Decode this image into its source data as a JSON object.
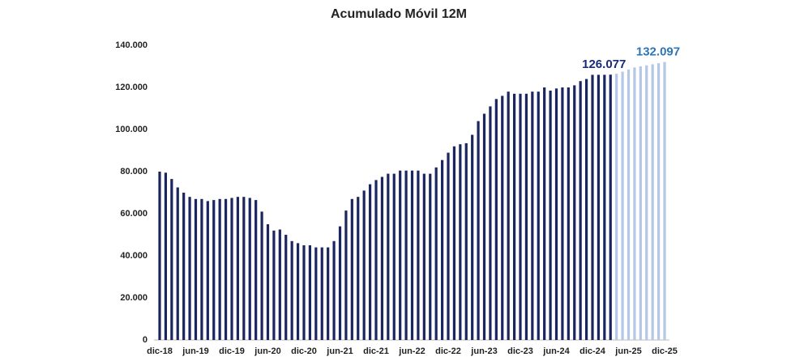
{
  "chart_data": {
    "type": "bar",
    "title": "Acumulado Móvil 12M",
    "categories": [
      "dic-18",
      null,
      null,
      null,
      null,
      null,
      "jun-19",
      null,
      null,
      null,
      null,
      null,
      "dic-19",
      null,
      null,
      null,
      null,
      null,
      "jun-20",
      null,
      null,
      null,
      null,
      null,
      "dic-20",
      null,
      null,
      null,
      null,
      null,
      "jun-21",
      null,
      null,
      null,
      null,
      null,
      "dic-21",
      null,
      null,
      null,
      null,
      null,
      "jun-22",
      null,
      null,
      null,
      null,
      null,
      "dic-22",
      null,
      null,
      null,
      null,
      null,
      "jun-23",
      null,
      null,
      null,
      null,
      null,
      "dic-23",
      null,
      null,
      null,
      null,
      null,
      "jun-24",
      null,
      null,
      null,
      null,
      null,
      "dic-24",
      null,
      null,
      null,
      null,
      null,
      "jun-25",
      null,
      null,
      null,
      null,
      null,
      "dic-25"
    ],
    "series": [
      {
        "color": "#1b2660",
        "label_color": "#1b2a78",
        "values": [
          80000,
          79500,
          76500,
          72500,
          70000,
          68000,
          67000,
          67000,
          66000,
          66500,
          67000,
          67000,
          67500,
          68000,
          68000,
          67500,
          66500,
          61000,
          55000,
          52000,
          52500,
          50000,
          47000,
          46000,
          45000,
          45000,
          44000,
          44000,
          44000,
          47000,
          54000,
          61500,
          67000,
          68000,
          71000,
          74000,
          76000,
          77500,
          79000,
          79000,
          80500,
          80500,
          80500,
          80500,
          79000,
          79000,
          82000,
          85500,
          89000,
          92000,
          93000,
          93500,
          97500,
          104000,
          107500,
          111000,
          114500,
          116000,
          118000,
          117000,
          117000,
          117000,
          118000,
          118000,
          120000,
          118500,
          119500,
          120000,
          120000,
          121000,
          123000,
          124000,
          126000,
          126000,
          126000,
          126077,
          null,
          null,
          null,
          null,
          null,
          null,
          null,
          null,
          null
        ],
        "value_labels": [
          null,
          null,
          null,
          null,
          null,
          null,
          null,
          null,
          null,
          null,
          null,
          null,
          null,
          null,
          null,
          null,
          null,
          null,
          null,
          null,
          null,
          null,
          null,
          null,
          null,
          null,
          null,
          null,
          null,
          null,
          null,
          null,
          null,
          null,
          null,
          null,
          null,
          null,
          null,
          null,
          null,
          null,
          null,
          null,
          null,
          null,
          null,
          null,
          null,
          null,
          null,
          null,
          null,
          null,
          null,
          null,
          null,
          null,
          null,
          null,
          null,
          null,
          null,
          null,
          null,
          null,
          null,
          null,
          null,
          null,
          null,
          null,
          null,
          null,
          null,
          "126.077",
          null,
          null,
          null,
          null,
          null,
          null,
          null,
          null,
          null
        ]
      },
      {
        "color": "#b4c7e7",
        "label_color": "#2e75b6",
        "values": [
          null,
          null,
          null,
          null,
          null,
          null,
          null,
          null,
          null,
          null,
          null,
          null,
          null,
          null,
          null,
          null,
          null,
          null,
          null,
          null,
          null,
          null,
          null,
          null,
          null,
          null,
          null,
          null,
          null,
          null,
          null,
          null,
          null,
          null,
          null,
          null,
          null,
          null,
          null,
          null,
          null,
          null,
          null,
          null,
          null,
          null,
          null,
          null,
          null,
          null,
          null,
          null,
          null,
          null,
          null,
          null,
          null,
          null,
          null,
          null,
          null,
          null,
          null,
          null,
          null,
          null,
          null,
          null,
          null,
          null,
          null,
          null,
          null,
          null,
          null,
          null,
          126500,
          127500,
          128500,
          129500,
          130000,
          130500,
          131000,
          131500,
          132097
        ],
        "value_labels": [
          null,
          null,
          null,
          null,
          null,
          null,
          null,
          null,
          null,
          null,
          null,
          null,
          null,
          null,
          null,
          null,
          null,
          null,
          null,
          null,
          null,
          null,
          null,
          null,
          null,
          null,
          null,
          null,
          null,
          null,
          null,
          null,
          null,
          null,
          null,
          null,
          null,
          null,
          null,
          null,
          null,
          null,
          null,
          null,
          null,
          null,
          null,
          null,
          null,
          null,
          null,
          null,
          null,
          null,
          null,
          null,
          null,
          null,
          null,
          null,
          null,
          null,
          null,
          null,
          null,
          null,
          null,
          null,
          null,
          null,
          null,
          null,
          null,
          null,
          null,
          null,
          null,
          null,
          null,
          null,
          null,
          null,
          null,
          null,
          "132.097"
        ]
      }
    ],
    "ylim": [
      0,
      140000
    ],
    "yticks": [
      0,
      {
        "value": 20000,
        "label": "20.000"
      },
      {
        "value": 40000,
        "label": "40.000"
      },
      {
        "value": 60000,
        "label": "60.000"
      },
      {
        "value": 80000,
        "label": "80.000"
      },
      {
        "value": 100000,
        "label": "100.000"
      },
      {
        "value": 120000,
        "label": "120.000"
      },
      {
        "value": 140000,
        "label": "140.000"
      }
    ],
    "grid": false
  }
}
